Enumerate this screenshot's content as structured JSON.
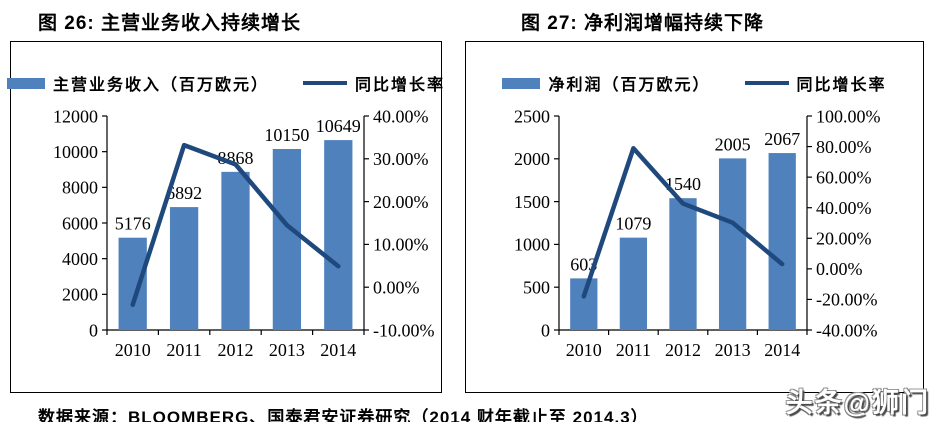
{
  "footer": {
    "source": "数据来源：BLOOMBERG、国泰君安证券研究（2014 财年截止至 2014.3）"
  },
  "watermark": {
    "text": "头条@狮门"
  },
  "colors": {
    "bar": "#4F81BD",
    "line": "#1F497D",
    "axis": "#000000"
  },
  "chart_data": [
    {
      "type": "bar",
      "subtype": "bar+line combo",
      "title": "图 26:  主营业务收入持续增长",
      "categories": [
        "2010",
        "2011",
        "2012",
        "2013",
        "2014"
      ],
      "series": [
        {
          "name": "主营业务收入（百万欧元）",
          "type": "bar",
          "axis": "left",
          "color": "#4F81BD",
          "values": [
            5176,
            6892,
            8868,
            10150,
            10649
          ],
          "data_labels": [
            5176,
            6892,
            8868,
            10150,
            10649
          ]
        },
        {
          "name": "同比增长率",
          "type": "line",
          "axis": "right",
          "color": "#1F497D",
          "unit": "%",
          "values": [
            -4.1,
            33.2,
            28.7,
            14.5,
            4.9
          ]
        }
      ],
      "left_axis": {
        "min": 0,
        "max": 12000,
        "step": 2000,
        "format": "int"
      },
      "right_axis": {
        "min": -10,
        "max": 40,
        "step": 10,
        "format": "percent"
      },
      "legend_position": "top",
      "grid": false
    },
    {
      "type": "bar",
      "subtype": "bar+line combo",
      "title": "图 27:  净利润增幅持续下降",
      "categories": [
        "2010",
        "2011",
        "2012",
        "2013",
        "2014"
      ],
      "series": [
        {
          "name": "净利润（百万欧元）",
          "type": "bar",
          "axis": "left",
          "color": "#4F81BD",
          "values": [
            603,
            1079,
            1540,
            2005,
            2067
          ],
          "data_labels": [
            603,
            1079,
            1540,
            2005,
            2067
          ]
        },
        {
          "name": "同比增长率",
          "type": "line",
          "axis": "right",
          "color": "#1F497D",
          "unit": "%",
          "values": [
            -18.0,
            78.9,
            42.7,
            30.2,
            3.1
          ]
        }
      ],
      "left_axis": {
        "min": 0,
        "max": 2500,
        "step": 500,
        "format": "int"
      },
      "right_axis": {
        "min": -40,
        "max": 100,
        "step": 20,
        "format": "percent"
      },
      "legend_position": "top",
      "grid": false
    }
  ]
}
